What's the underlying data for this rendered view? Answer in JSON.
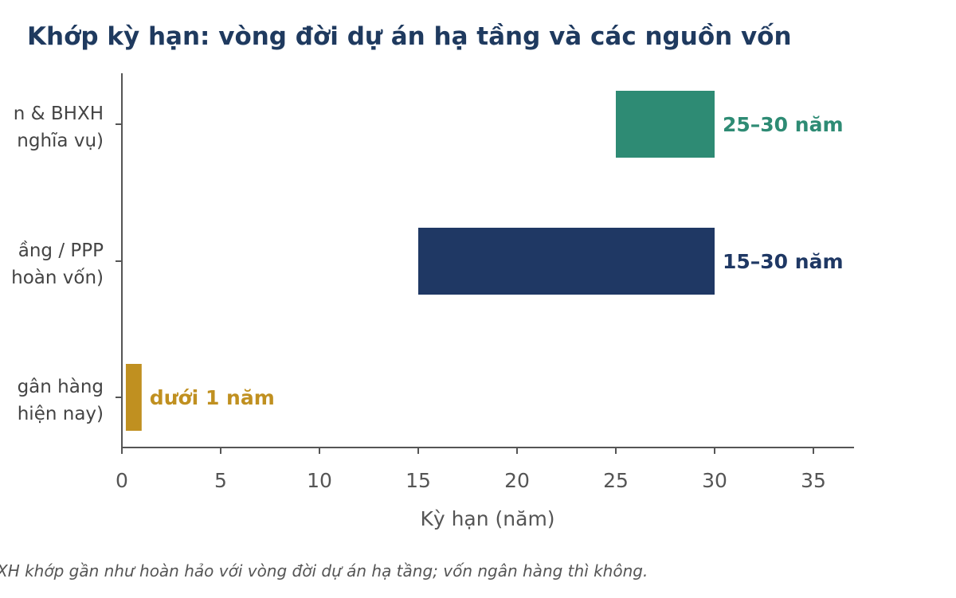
{
  "chart_data": {
    "type": "bar",
    "orientation": "horizontal",
    "title": "Khớp kỳ hạn: vòng đời dự án hạ tầng và các nguồn vốn",
    "xlabel": "Kỳ hạn (năm)",
    "ylabel": "",
    "xlim": [
      0,
      37
    ],
    "xticks": [
      "0",
      "5",
      "10",
      "15",
      "20",
      "25",
      "30",
      "35"
    ],
    "grid": false,
    "categories": [
      {
        "line1": "n & BHXH",
        "line2": "nghĩa vụ)"
      },
      {
        "line1": "ầng / PPP",
        "line2": "hoàn vốn)"
      },
      {
        "line1": "gân hàng",
        "line2": "hiện nay)"
      }
    ],
    "bars": [
      {
        "start": 25,
        "end": 30,
        "label": "25–30 năm",
        "color": "#2e8b74"
      },
      {
        "start": 15,
        "end": 30,
        "label": "15–30 năm",
        "color": "#1f3864"
      },
      {
        "start": 0.2,
        "end": 1,
        "label": "dưới 1 năm",
        "color": "#c09020"
      }
    ],
    "footnote": "XH khớp gần như hoàn hảo với vòng đời dự án hạ tầng; vốn ngân hàng thì không."
  }
}
